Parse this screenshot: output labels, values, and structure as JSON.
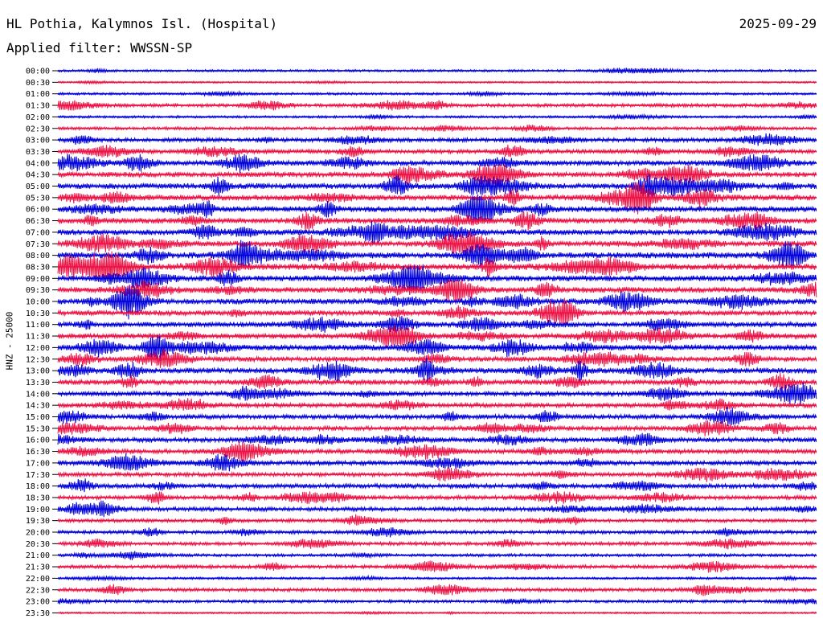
{
  "header": {
    "station_title": "HL Pothia, Kalymnos Isl. (Hospital)",
    "date": "2025-09-29",
    "filter_label": "Applied filter: WWSSN-SP"
  },
  "chart_data": {
    "type": "line",
    "title": "HL Pothia, Kalymnos Isl. (Hospital)",
    "ylabel": "HNZ - 25000",
    "colors": [
      "#0000dd",
      "#ee1144"
    ],
    "grid": false,
    "legend": "none",
    "rows": [
      {
        "time": "00:00",
        "activity": 0.2
      },
      {
        "time": "00:30",
        "activity": 0.1
      },
      {
        "time": "01:00",
        "activity": 0.2
      },
      {
        "time": "01:30",
        "activity": 0.4
      },
      {
        "time": "02:00",
        "activity": 0.2
      },
      {
        "time": "02:30",
        "activity": 0.3
      },
      {
        "time": "03:00",
        "activity": 0.5
      },
      {
        "time": "03:30",
        "activity": 0.5
      },
      {
        "time": "04:00",
        "activity": 0.7
      },
      {
        "time": "04:30",
        "activity": 0.7
      },
      {
        "time": "05:00",
        "activity": 0.8
      },
      {
        "time": "05:30",
        "activity": 0.8
      },
      {
        "time": "06:00",
        "activity": 0.8
      },
      {
        "time": "06:30",
        "activity": 0.8
      },
      {
        "time": "07:00",
        "activity": 0.8
      },
      {
        "time": "07:30",
        "activity": 0.8
      },
      {
        "time": "08:00",
        "activity": 0.9
      },
      {
        "time": "08:30",
        "activity": 0.9
      },
      {
        "time": "09:00",
        "activity": 0.8
      },
      {
        "time": "09:30",
        "activity": 0.8
      },
      {
        "time": "10:00",
        "activity": 0.8
      },
      {
        "time": "10:30",
        "activity": 0.7
      },
      {
        "time": "11:00",
        "activity": 0.7
      },
      {
        "time": "11:30",
        "activity": 0.7
      },
      {
        "time": "12:00",
        "activity": 0.8
      },
      {
        "time": "12:30",
        "activity": 0.7
      },
      {
        "time": "13:00",
        "activity": 0.8
      },
      {
        "time": "13:30",
        "activity": 0.7
      },
      {
        "time": "14:00",
        "activity": 0.6
      },
      {
        "time": "14:30",
        "activity": 0.6
      },
      {
        "time": "15:00",
        "activity": 0.6
      },
      {
        "time": "15:30",
        "activity": 0.6
      },
      {
        "time": "16:00",
        "activity": 0.6
      },
      {
        "time": "16:30",
        "activity": 0.6
      },
      {
        "time": "17:00",
        "activity": 0.6
      },
      {
        "time": "17:30",
        "activity": 0.5
      },
      {
        "time": "18:00",
        "activity": 0.6
      },
      {
        "time": "18:30",
        "activity": 0.5
      },
      {
        "time": "19:00",
        "activity": 0.5
      },
      {
        "time": "19:30",
        "activity": 0.4
      },
      {
        "time": "20:00",
        "activity": 0.4
      },
      {
        "time": "20:30",
        "activity": 0.4
      },
      {
        "time": "21:00",
        "activity": 0.3
      },
      {
        "time": "21:30",
        "activity": 0.4
      },
      {
        "time": "22:00",
        "activity": 0.2
      },
      {
        "time": "22:30",
        "activity": 0.4
      },
      {
        "time": "23:00",
        "activity": 0.3
      },
      {
        "time": "23:30",
        "activity": 0.1
      }
    ]
  }
}
